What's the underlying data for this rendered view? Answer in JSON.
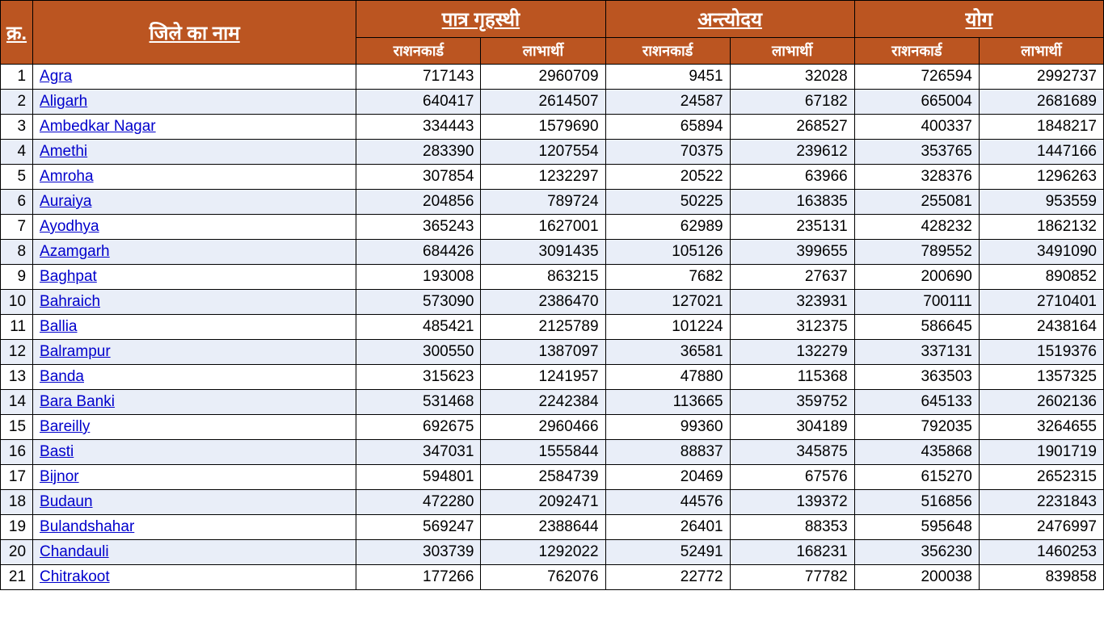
{
  "table": {
    "type": "table",
    "header_bg": "#bb5521",
    "header_fg": "#ffffff",
    "row_even_bg": "#e9eef8",
    "row_odd_bg": "#ffffff",
    "link_color": "#0000cc",
    "border_color": "#000000",
    "columns": {
      "sno": "क्र.",
      "district": " जिले का नाम ",
      "group1": " पात्र गृहस्थी ",
      "group2": " अन्त्योदय ",
      "group3": " योग ",
      "sub_ration": "राशनकार्ड",
      "sub_benef": "लाभार्थी"
    },
    "rows": [
      {
        "sno": "1",
        "name": "Agra",
        "pg_r": "717143",
        "pg_b": "2960709",
        "an_r": "9451",
        "an_b": "32028",
        "yo_r": "726594",
        "yo_b": "2992737"
      },
      {
        "sno": "2",
        "name": "Aligarh",
        "pg_r": "640417",
        "pg_b": "2614507",
        "an_r": "24587",
        "an_b": "67182",
        "yo_r": "665004",
        "yo_b": "2681689"
      },
      {
        "sno": "3",
        "name": "Ambedkar Nagar",
        "pg_r": "334443",
        "pg_b": "1579690",
        "an_r": "65894",
        "an_b": "268527",
        "yo_r": "400337",
        "yo_b": "1848217"
      },
      {
        "sno": "4",
        "name": "Amethi",
        "pg_r": "283390",
        "pg_b": "1207554",
        "an_r": "70375",
        "an_b": "239612",
        "yo_r": "353765",
        "yo_b": "1447166"
      },
      {
        "sno": "5",
        "name": "Amroha",
        "pg_r": "307854",
        "pg_b": "1232297",
        "an_r": "20522",
        "an_b": "63966",
        "yo_r": "328376",
        "yo_b": "1296263"
      },
      {
        "sno": "6",
        "name": "Auraiya",
        "pg_r": "204856",
        "pg_b": "789724",
        "an_r": "50225",
        "an_b": "163835",
        "yo_r": "255081",
        "yo_b": "953559"
      },
      {
        "sno": "7",
        "name": "Ayodhya",
        "pg_r": "365243",
        "pg_b": "1627001",
        "an_r": "62989",
        "an_b": "235131",
        "yo_r": "428232",
        "yo_b": "1862132"
      },
      {
        "sno": "8",
        "name": "Azamgarh",
        "pg_r": "684426",
        "pg_b": "3091435",
        "an_r": "105126",
        "an_b": "399655",
        "yo_r": "789552",
        "yo_b": "3491090"
      },
      {
        "sno": "9",
        "name": "Baghpat",
        "pg_r": "193008",
        "pg_b": "863215",
        "an_r": "7682",
        "an_b": "27637",
        "yo_r": "200690",
        "yo_b": "890852"
      },
      {
        "sno": "10",
        "name": "Bahraich",
        "pg_r": "573090",
        "pg_b": "2386470",
        "an_r": "127021",
        "an_b": "323931",
        "yo_r": "700111",
        "yo_b": "2710401"
      },
      {
        "sno": "11",
        "name": "Ballia",
        "pg_r": "485421",
        "pg_b": "2125789",
        "an_r": "101224",
        "an_b": "312375",
        "yo_r": "586645",
        "yo_b": "2438164"
      },
      {
        "sno": "12",
        "name": "Balrampur",
        "pg_r": "300550",
        "pg_b": "1387097",
        "an_r": "36581",
        "an_b": "132279",
        "yo_r": "337131",
        "yo_b": "1519376"
      },
      {
        "sno": "13",
        "name": "Banda",
        "pg_r": "315623",
        "pg_b": "1241957",
        "an_r": "47880",
        "an_b": "115368",
        "yo_r": "363503",
        "yo_b": "1357325"
      },
      {
        "sno": "14",
        "name": "Bara Banki",
        "pg_r": "531468",
        "pg_b": "2242384",
        "an_r": "113665",
        "an_b": "359752",
        "yo_r": "645133",
        "yo_b": "2602136"
      },
      {
        "sno": "15",
        "name": "Bareilly",
        "pg_r": "692675",
        "pg_b": "2960466",
        "an_r": "99360",
        "an_b": "304189",
        "yo_r": "792035",
        "yo_b": "3264655"
      },
      {
        "sno": "16",
        "name": "Basti",
        "pg_r": "347031",
        "pg_b": "1555844",
        "an_r": "88837",
        "an_b": "345875",
        "yo_r": "435868",
        "yo_b": "1901719"
      },
      {
        "sno": "17",
        "name": "Bijnor",
        "pg_r": "594801",
        "pg_b": "2584739",
        "an_r": "20469",
        "an_b": "67576",
        "yo_r": "615270",
        "yo_b": "2652315"
      },
      {
        "sno": "18",
        "name": "Budaun",
        "pg_r": "472280",
        "pg_b": "2092471",
        "an_r": "44576",
        "an_b": "139372",
        "yo_r": "516856",
        "yo_b": "2231843"
      },
      {
        "sno": "19",
        "name": "Bulandshahar",
        "pg_r": "569247",
        "pg_b": "2388644",
        "an_r": "26401",
        "an_b": "88353",
        "yo_r": "595648",
        "yo_b": "2476997"
      },
      {
        "sno": "20",
        "name": "Chandauli",
        "pg_r": "303739",
        "pg_b": "1292022",
        "an_r": "52491",
        "an_b": "168231",
        "yo_r": "356230",
        "yo_b": "1460253"
      },
      {
        "sno": "21",
        "name": "Chitrakoot",
        "pg_r": "177266",
        "pg_b": "762076",
        "an_r": "22772",
        "an_b": "77782",
        "yo_r": "200038",
        "yo_b": "839858"
      }
    ]
  }
}
